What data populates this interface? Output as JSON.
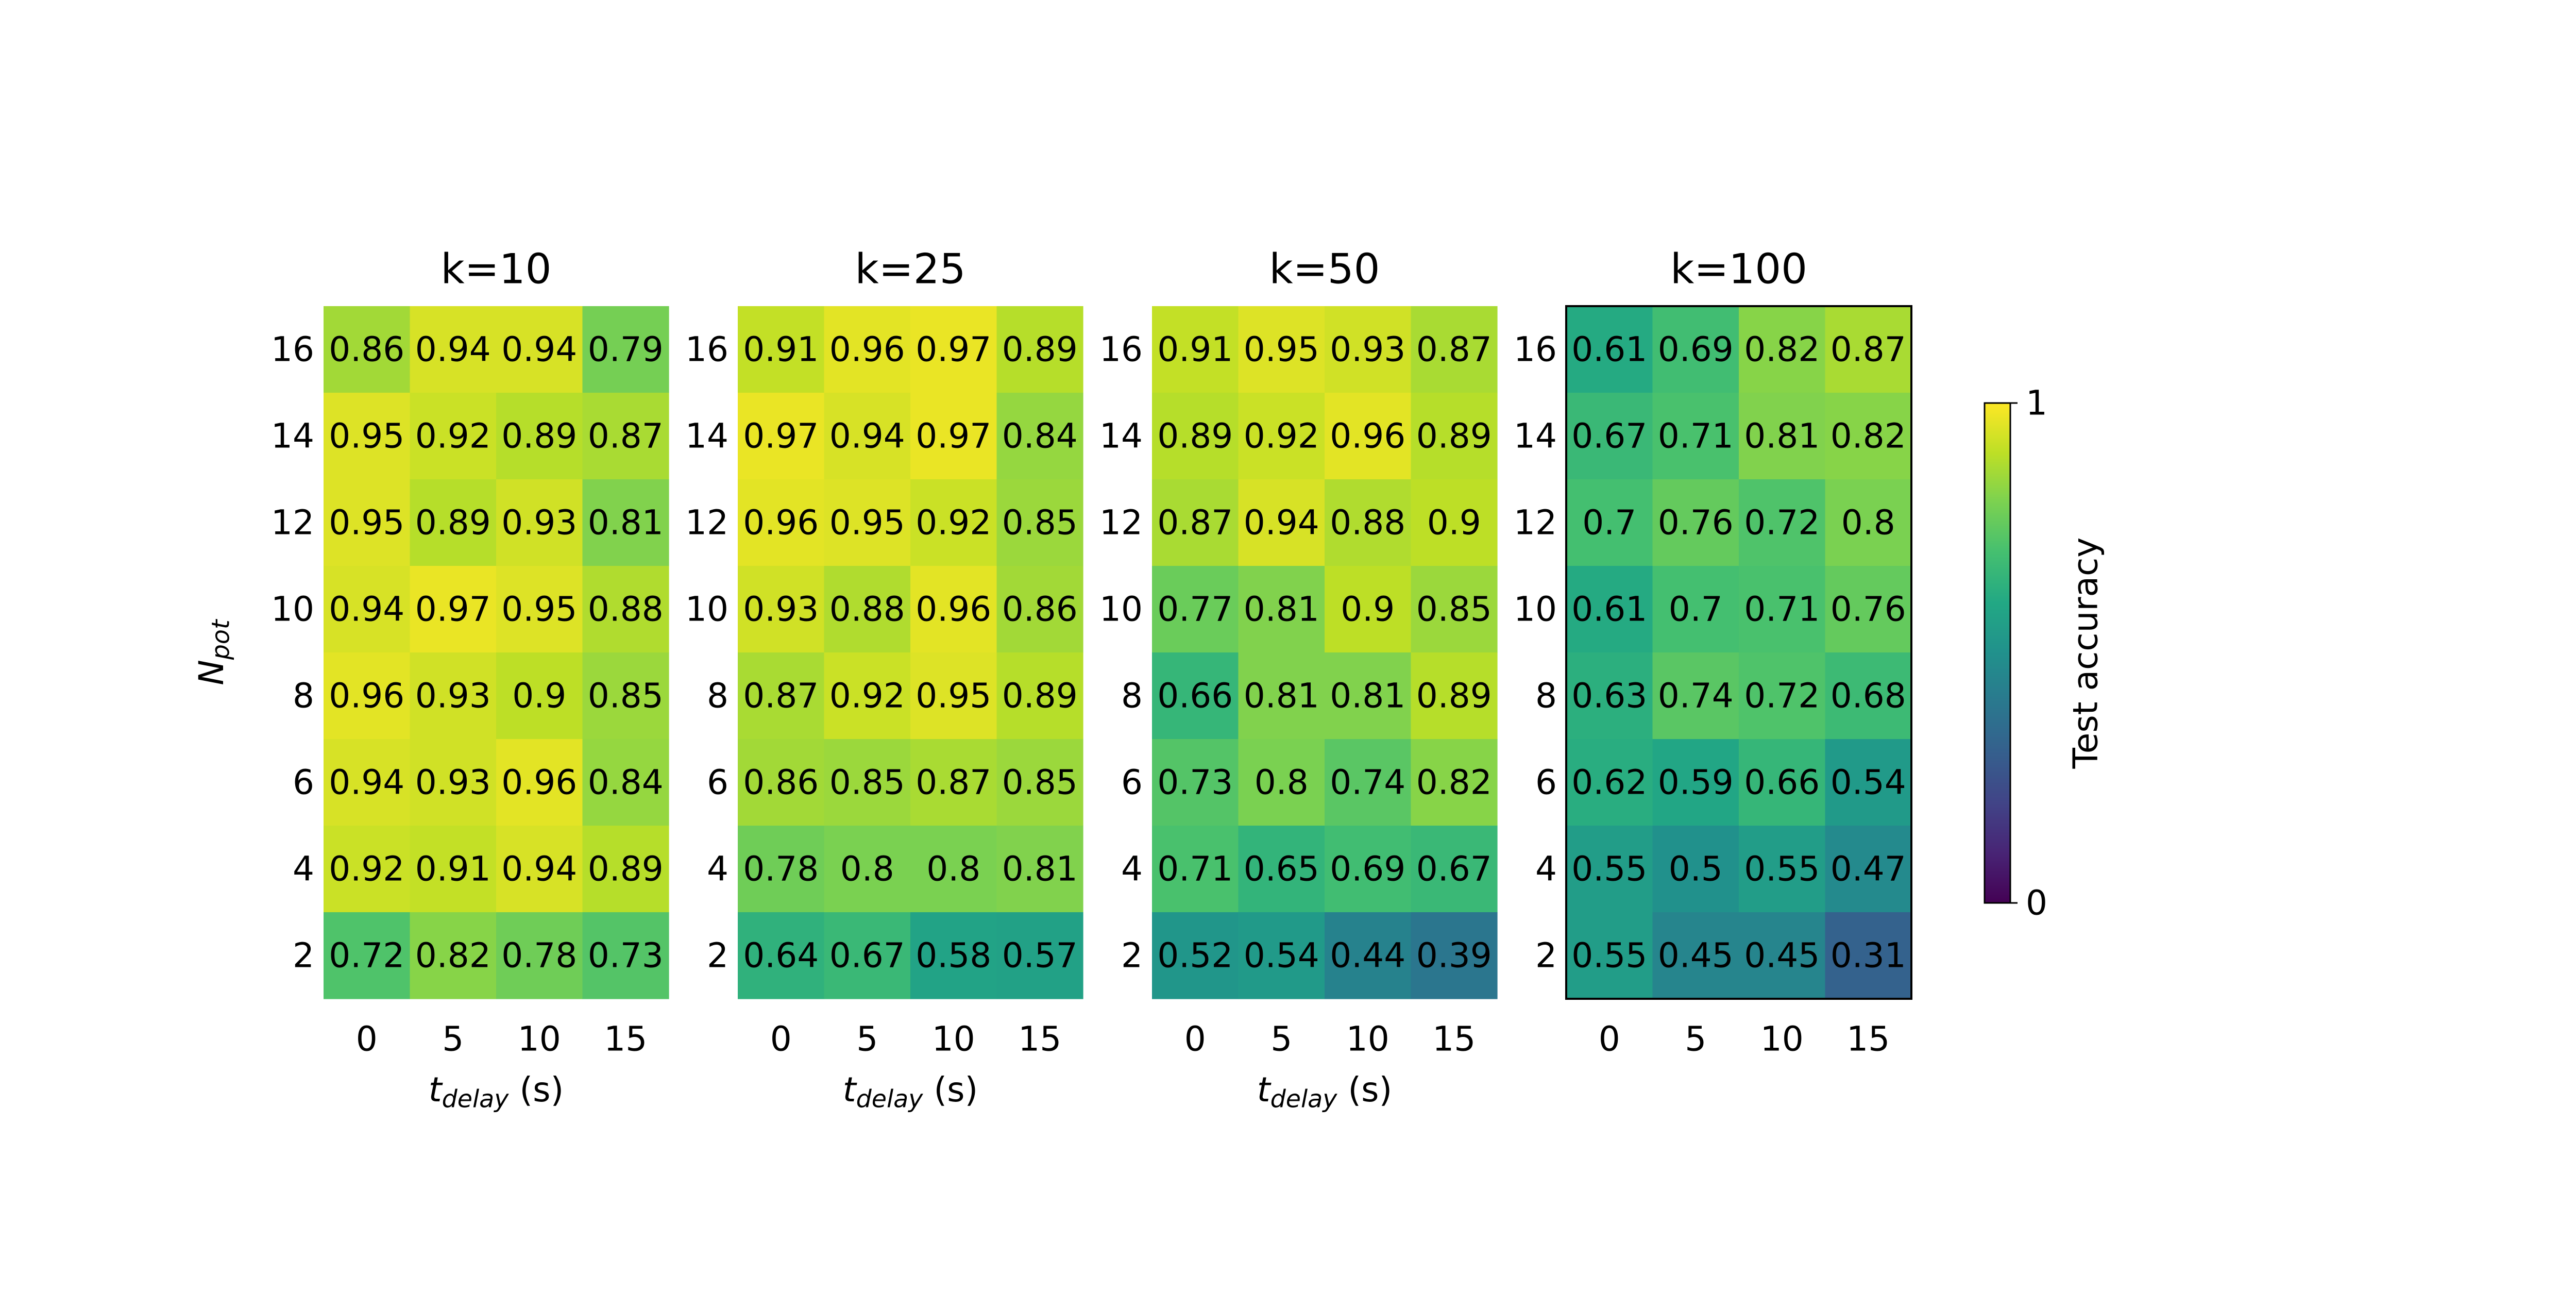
{
  "chart_data": {
    "type": "heatmap",
    "colormap": "viridis",
    "y_label": {
      "base": "N",
      "subscript": "pot"
    },
    "x_label": {
      "base": "t",
      "subscript": "delay",
      "suffix": " (s)"
    },
    "x_ticks": [
      "0",
      "5",
      "10",
      "15"
    ],
    "y_ticks": [
      "16",
      "14",
      "12",
      "10",
      "8",
      "6",
      "4",
      "2"
    ],
    "colorbar": {
      "label": "Test accuracy",
      "range": [
        0,
        1
      ],
      "tick_labels": [
        "1",
        "0"
      ]
    },
    "panels": [
      {
        "title": "k=10",
        "values": [
          [
            "0.86",
            "0.94",
            "0.94",
            "0.79"
          ],
          [
            "0.95",
            "0.92",
            "0.89",
            "0.87"
          ],
          [
            "0.95",
            "0.89",
            "0.93",
            "0.81"
          ],
          [
            "0.94",
            "0.97",
            "0.95",
            "0.88"
          ],
          [
            "0.96",
            "0.93",
            "0.9",
            "0.85"
          ],
          [
            "0.94",
            "0.93",
            "0.96",
            "0.84"
          ],
          [
            "0.92",
            "0.91",
            "0.94",
            "0.89"
          ],
          [
            "0.72",
            "0.82",
            "0.78",
            "0.73"
          ]
        ]
      },
      {
        "title": "k=25",
        "values": [
          [
            "0.91",
            "0.96",
            "0.97",
            "0.89"
          ],
          [
            "0.97",
            "0.94",
            "0.97",
            "0.84"
          ],
          [
            "0.96",
            "0.95",
            "0.92",
            "0.85"
          ],
          [
            "0.93",
            "0.88",
            "0.96",
            "0.86"
          ],
          [
            "0.87",
            "0.92",
            "0.95",
            "0.89"
          ],
          [
            "0.86",
            "0.85",
            "0.87",
            "0.85"
          ],
          [
            "0.78",
            "0.8",
            "0.8",
            "0.81"
          ],
          [
            "0.64",
            "0.67",
            "0.58",
            "0.57"
          ]
        ]
      },
      {
        "title": "k=50",
        "values": [
          [
            "0.91",
            "0.95",
            "0.93",
            "0.87"
          ],
          [
            "0.89",
            "0.92",
            "0.96",
            "0.89"
          ],
          [
            "0.87",
            "0.94",
            "0.88",
            "0.9"
          ],
          [
            "0.77",
            "0.81",
            "0.9",
            "0.85"
          ],
          [
            "0.66",
            "0.81",
            "0.81",
            "0.89"
          ],
          [
            "0.73",
            "0.8",
            "0.74",
            "0.82"
          ],
          [
            "0.71",
            "0.65",
            "0.69",
            "0.67"
          ],
          [
            "0.52",
            "0.54",
            "0.44",
            "0.39"
          ]
        ]
      },
      {
        "title": "k=100",
        "values": [
          [
            "0.61",
            "0.69",
            "0.82",
            "0.87"
          ],
          [
            "0.67",
            "0.71",
            "0.81",
            "0.82"
          ],
          [
            "0.7",
            "0.76",
            "0.72",
            "0.8"
          ],
          [
            "0.61",
            "0.7",
            "0.71",
            "0.76"
          ],
          [
            "0.63",
            "0.74",
            "0.72",
            "0.68"
          ],
          [
            "0.62",
            "0.59",
            "0.66",
            "0.54"
          ],
          [
            "0.55",
            "0.5",
            "0.55",
            "0.47"
          ],
          [
            "0.55",
            "0.45",
            "0.45",
            "0.31"
          ]
        ]
      }
    ]
  }
}
